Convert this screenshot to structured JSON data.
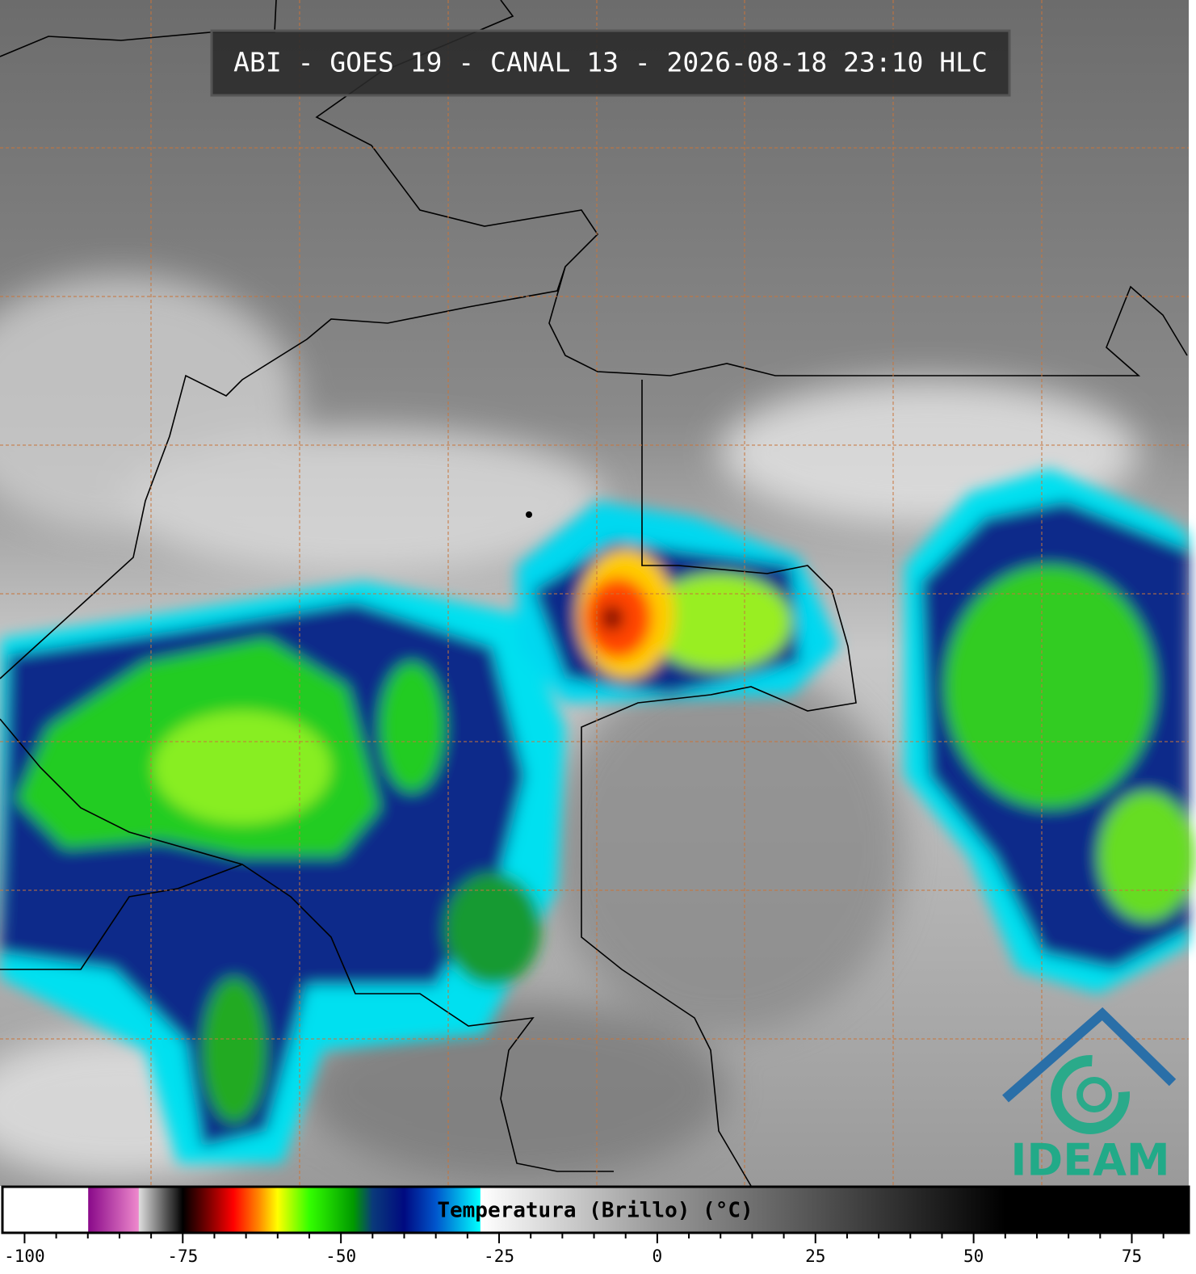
{
  "header": {
    "title": "ABI - GOES 19 - CANAL 13 - 2026-08-18 23:10 HLC"
  },
  "colorbar": {
    "label": "Temperatura (Brillo) (°C)",
    "xlim": [
      -103.5,
      84
    ],
    "xticks": [
      -100,
      -75,
      -50,
      -25,
      0,
      25,
      50,
      75
    ],
    "minor_xticks": [
      -95,
      -90,
      -85,
      -80,
      -70,
      -65,
      -60,
      -55,
      -45,
      -40,
      -35,
      -30,
      -20,
      -15,
      -10,
      -5,
      5,
      10,
      15,
      20,
      30,
      35,
      40,
      45,
      55,
      60,
      65,
      70,
      80
    ],
    "stops": [
      {
        "value": -103.5,
        "color": "#ffffff"
      },
      {
        "value": -90,
        "color": "#ffffff"
      },
      {
        "value": -89.9,
        "color": "#8a0a8a"
      },
      {
        "value": -82,
        "color": "#ee88cc"
      },
      {
        "value": -81.9,
        "color": "#dddddd"
      },
      {
        "value": -76,
        "color": "#222222"
      },
      {
        "value": -75,
        "color": "#000000"
      },
      {
        "value": -71,
        "color": "#7a0000"
      },
      {
        "value": -67,
        "color": "#ff0000"
      },
      {
        "value": -63,
        "color": "#ff8800"
      },
      {
        "value": -60,
        "color": "#ffff00"
      },
      {
        "value": -55,
        "color": "#33ff00"
      },
      {
        "value": -48,
        "color": "#009900"
      },
      {
        "value": -45,
        "color": "#0a3a7a"
      },
      {
        "value": -40,
        "color": "#000a80"
      },
      {
        "value": -35,
        "color": "#0055cc"
      },
      {
        "value": -28,
        "color": "#00ffff"
      },
      {
        "value": -27.9,
        "color": "#ffffff"
      },
      {
        "value": 0,
        "color": "#999999"
      },
      {
        "value": 55,
        "color": "#000000"
      },
      {
        "value": 84,
        "color": "#000000"
      }
    ]
  },
  "logo": {
    "text": "IDEAM"
  }
}
